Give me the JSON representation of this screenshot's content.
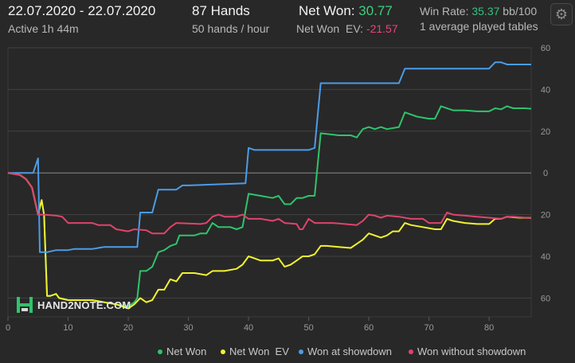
{
  "header": {
    "date_range": "22.07.2020 - 22.07.2020",
    "active_label": "Active 1h 44m",
    "hands_label": "87 Hands",
    "rate_label": "50 hands / hour",
    "net_won_label": "Net Won:",
    "net_won_value": "30.77",
    "net_won_ev_label": "Net Won  EV:",
    "net_won_ev_value": "-21.57",
    "win_rate_label": "Win Rate:",
    "win_rate_value": "35.37",
    "win_rate_unit": "bb/100",
    "tables_label": "1 average played tables",
    "settings_icon": "gear-icon"
  },
  "watermark": "HAND2NOTE.COM",
  "colors": {
    "background": "#282828",
    "net_won": "#2ec46c",
    "net_won_ev": "#f2f230",
    "showdown": "#4b9ce8",
    "non_showdown": "#e0436c",
    "positive_text": "#3fce7c",
    "negative_text": "#e8457a"
  },
  "chart_data": {
    "type": "line",
    "xlim": [
      0,
      87
    ],
    "ylim": [
      -69,
      60
    ],
    "x_ticks": [
      0,
      10,
      20,
      30,
      40,
      50,
      60,
      70,
      80
    ],
    "y_ticks": [
      60,
      40,
      20,
      0,
      -20,
      -40,
      -60
    ],
    "y_tick_labels": [
      "60",
      "40",
      "20",
      "0",
      "20",
      "40",
      "60"
    ],
    "grid": true,
    "legend": "bottom",
    "series": [
      {
        "name": "Net Won",
        "color": "#2ec46c",
        "points": [
          [
            0,
            0
          ],
          [
            2,
            -1
          ],
          [
            3,
            -3
          ],
          [
            4,
            -7
          ],
          [
            5,
            -20
          ],
          [
            5.6,
            -13
          ],
          [
            6,
            -20
          ],
          [
            6.5,
            -59
          ],
          [
            7,
            -59
          ],
          [
            8,
            -58
          ],
          [
            8.5,
            -60
          ],
          [
            10,
            -61
          ],
          [
            12,
            -61
          ],
          [
            14,
            -61
          ],
          [
            16,
            -62
          ],
          [
            18,
            -63
          ],
          [
            20,
            -64
          ],
          [
            21,
            -62
          ],
          [
            21.5,
            -60
          ],
          [
            22,
            -47
          ],
          [
            23,
            -47
          ],
          [
            24,
            -45
          ],
          [
            25,
            -38
          ],
          [
            26,
            -37
          ],
          [
            27,
            -35
          ],
          [
            28,
            -34
          ],
          [
            28.5,
            -30
          ],
          [
            29,
            -30
          ],
          [
            31,
            -30
          ],
          [
            32,
            -29
          ],
          [
            33,
            -29
          ],
          [
            34,
            -24
          ],
          [
            35,
            -26
          ],
          [
            37,
            -26
          ],
          [
            38,
            -27
          ],
          [
            39,
            -26
          ],
          [
            40,
            -10
          ],
          [
            42,
            -11
          ],
          [
            44,
            -12
          ],
          [
            45,
            -11
          ],
          [
            46,
            -15
          ],
          [
            47,
            -15
          ],
          [
            48,
            -12
          ],
          [
            49,
            -12
          ],
          [
            50,
            -11
          ],
          [
            51,
            -11
          ],
          [
            52,
            19
          ],
          [
            55,
            18
          ],
          [
            57,
            18
          ],
          [
            58,
            17
          ],
          [
            59,
            21
          ],
          [
            60,
            22
          ],
          [
            61,
            21
          ],
          [
            62,
            22
          ],
          [
            63,
            21
          ],
          [
            65,
            22
          ],
          [
            66,
            29
          ],
          [
            67,
            28
          ],
          [
            68,
            27
          ],
          [
            70,
            26
          ],
          [
            71,
            26
          ],
          [
            72,
            32
          ],
          [
            74,
            30
          ],
          [
            76,
            30
          ],
          [
            78,
            29.5
          ],
          [
            80,
            29.5
          ],
          [
            81,
            31
          ],
          [
            82,
            30.5
          ],
          [
            83,
            32
          ],
          [
            84,
            31
          ],
          [
            86,
            31
          ],
          [
            87,
            30.77
          ]
        ]
      },
      {
        "name": "Net Won  EV",
        "color": "#f2f230",
        "points": [
          [
            0,
            0
          ],
          [
            2,
            -1
          ],
          [
            3,
            -3
          ],
          [
            4,
            -7
          ],
          [
            5,
            -20
          ],
          [
            5.6,
            -13
          ],
          [
            6,
            -20
          ],
          [
            6.5,
            -59
          ],
          [
            7,
            -59
          ],
          [
            8,
            -58
          ],
          [
            8.5,
            -60
          ],
          [
            10,
            -61
          ],
          [
            12,
            -61
          ],
          [
            14,
            -61
          ],
          [
            16,
            -62
          ],
          [
            18,
            -63
          ],
          [
            20,
            -65
          ],
          [
            21,
            -63
          ],
          [
            22,
            -60
          ],
          [
            23,
            -62
          ],
          [
            24,
            -61
          ],
          [
            25,
            -56
          ],
          [
            26,
            -56
          ],
          [
            27,
            -51
          ],
          [
            28,
            -52
          ],
          [
            29,
            -48
          ],
          [
            31,
            -48
          ],
          [
            33,
            -49
          ],
          [
            34,
            -47
          ],
          [
            36,
            -47
          ],
          [
            38,
            -46
          ],
          [
            39,
            -44
          ],
          [
            40,
            -40
          ],
          [
            41,
            -41
          ],
          [
            42,
            -42
          ],
          [
            44,
            -42
          ],
          [
            45,
            -41
          ],
          [
            46,
            -45
          ],
          [
            47,
            -44
          ],
          [
            48,
            -42
          ],
          [
            49,
            -40
          ],
          [
            50,
            -40
          ],
          [
            51,
            -39
          ],
          [
            52,
            -35
          ],
          [
            53,
            -35
          ],
          [
            55,
            -35.5
          ],
          [
            57,
            -36
          ],
          [
            58,
            -34
          ],
          [
            59,
            -32
          ],
          [
            60,
            -29
          ],
          [
            61,
            -30
          ],
          [
            62,
            -31
          ],
          [
            63,
            -30
          ],
          [
            64,
            -28
          ],
          [
            65,
            -28
          ],
          [
            66,
            -24
          ],
          [
            67,
            -25
          ],
          [
            69,
            -26
          ],
          [
            71,
            -27
          ],
          [
            72,
            -27
          ],
          [
            73,
            -22
          ],
          [
            74,
            -23
          ],
          [
            76,
            -24
          ],
          [
            78,
            -24.5
          ],
          [
            80,
            -24.5
          ],
          [
            81,
            -22
          ],
          [
            82,
            -22
          ],
          [
            83,
            -21
          ],
          [
            85,
            -21.5
          ],
          [
            87,
            -21.57
          ]
        ]
      },
      {
        "name": "Won at showdown",
        "color": "#4b9ce8",
        "points": [
          [
            0,
            0
          ],
          [
            4.2,
            0
          ],
          [
            5,
            7
          ],
          [
            5.3,
            -38
          ],
          [
            6.5,
            -38
          ],
          [
            8,
            -37
          ],
          [
            10,
            -37
          ],
          [
            11,
            -36.5
          ],
          [
            14,
            -36.5
          ],
          [
            16,
            -35.5
          ],
          [
            20,
            -35.5
          ],
          [
            21.5,
            -35.5
          ],
          [
            22,
            -19
          ],
          [
            24,
            -19
          ],
          [
            25,
            -8
          ],
          [
            28,
            -8
          ],
          [
            29,
            -6
          ],
          [
            30,
            -6
          ],
          [
            39.5,
            -5
          ],
          [
            40,
            12
          ],
          [
            41,
            11
          ],
          [
            42,
            11
          ],
          [
            44,
            11
          ],
          [
            50,
            11
          ],
          [
            51,
            12
          ],
          [
            52,
            43
          ],
          [
            59,
            43
          ],
          [
            65,
            43
          ],
          [
            66,
            50
          ],
          [
            80,
            50
          ],
          [
            81,
            53
          ],
          [
            82,
            53
          ],
          [
            83,
            52
          ],
          [
            87,
            52
          ]
        ]
      },
      {
        "name": "Won without showdown",
        "color": "#e0436c",
        "points": [
          [
            0,
            0
          ],
          [
            2,
            -1
          ],
          [
            3,
            -3
          ],
          [
            4,
            -7
          ],
          [
            5,
            -20
          ],
          [
            6,
            -20
          ],
          [
            8,
            -20.5
          ],
          [
            9,
            -21
          ],
          [
            10,
            -24
          ],
          [
            12,
            -24
          ],
          [
            14,
            -24
          ],
          [
            15,
            -25
          ],
          [
            17,
            -25
          ],
          [
            18,
            -27
          ],
          [
            20,
            -28
          ],
          [
            21,
            -27
          ],
          [
            23,
            -27.5
          ],
          [
            24,
            -29
          ],
          [
            26,
            -29
          ],
          [
            27,
            -26
          ],
          [
            28,
            -24
          ],
          [
            32,
            -24.5
          ],
          [
            33,
            -24
          ],
          [
            34,
            -21
          ],
          [
            35,
            -20
          ],
          [
            36,
            -21
          ],
          [
            38,
            -21
          ],
          [
            39,
            -20
          ],
          [
            40,
            -22
          ],
          [
            42,
            -22
          ],
          [
            44,
            -23
          ],
          [
            45,
            -22
          ],
          [
            46,
            -24
          ],
          [
            48,
            -24.5
          ],
          [
            48.5,
            -27
          ],
          [
            49,
            -27
          ],
          [
            50,
            -22
          ],
          [
            51,
            -24
          ],
          [
            53,
            -24
          ],
          [
            54,
            -24
          ],
          [
            56,
            -24.5
          ],
          [
            58,
            -25
          ],
          [
            59,
            -23
          ],
          [
            60,
            -20
          ],
          [
            61,
            -20.5
          ],
          [
            62,
            -21.5
          ],
          [
            63,
            -20.5
          ],
          [
            65,
            -21
          ],
          [
            67,
            -22
          ],
          [
            69,
            -22
          ],
          [
            70,
            -24
          ],
          [
            72,
            -24
          ],
          [
            73,
            -19
          ],
          [
            74,
            -20
          ],
          [
            76,
            -20.5
          ],
          [
            78,
            -21
          ],
          [
            80,
            -21.5
          ],
          [
            82,
            -22
          ],
          [
            83,
            -21
          ],
          [
            84,
            -21
          ],
          [
            86,
            -21.5
          ],
          [
            87,
            -21.57
          ]
        ]
      }
    ]
  }
}
